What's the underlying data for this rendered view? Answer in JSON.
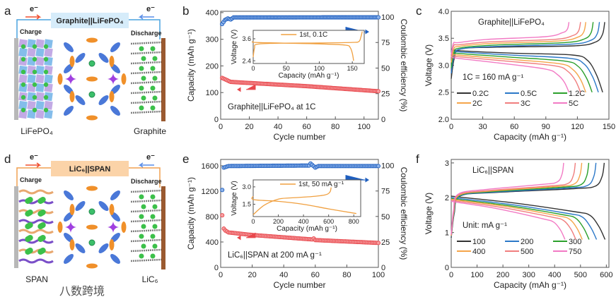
{
  "watermark": "八数跨境",
  "colors": {
    "capacity": "#e8474c",
    "ce": "#1f5fbf",
    "inset": "#f0a040",
    "axis": "#555555"
  },
  "schematics": [
    {
      "panel": "a",
      "title": "Graphite||LiFePO₄",
      "electron_left": "e⁻",
      "electron_right": "e⁻",
      "charge": "Charge",
      "discharge": "Discharge",
      "left_label": "LiFePO₄",
      "right_label": "Graphite",
      "title_color": "#d6ecfa",
      "wire_color": "#4aa3df",
      "left_type": "olivine"
    },
    {
      "panel": "d",
      "title": "LiC₆||SPAN",
      "electron_left": "e⁻",
      "electron_right": "e⁻",
      "charge": "Charge",
      "discharge": "Discharge",
      "left_label": "SPAN",
      "right_label": "LiC₆",
      "title_color": "#fbd3a8",
      "wire_color": "#f0a050",
      "left_type": "span"
    }
  ],
  "chart_data": [
    {
      "panel": "b",
      "type": "scatter",
      "xlabel": "Cycle number",
      "ylabel": "Capacity (mAh g⁻¹)",
      "y2label": "Coulombic efficiency (%)",
      "xlim": [
        0,
        110
      ],
      "ylim": [
        0,
        405
      ],
      "y2lim": [
        0,
        105.5
      ],
      "xticks": [
        0,
        20,
        40,
        60,
        80,
        100
      ],
      "yticks": [
        0,
        100,
        200,
        300,
        400
      ],
      "y2ticks": [
        0,
        25,
        50,
        75,
        100
      ],
      "annotation": "Graphite||LiFePO₄ at 1C",
      "n_cycles": 110,
      "series": [
        {
          "name": "Capacity",
          "axis": "left",
          "points": [
            [
              1,
              155
            ],
            [
              3,
              150
            ],
            [
              7,
              140
            ],
            [
              20,
              136
            ],
            [
              60,
              124
            ],
            [
              110,
              105
            ]
          ]
        },
        {
          "name": "Coulombic efficiency",
          "axis": "right",
          "points": [
            [
              1,
              93
            ],
            [
              2,
              95
            ],
            [
              3,
              97
            ],
            [
              5,
              98.5
            ],
            [
              7,
              97.5
            ],
            [
              9,
              99.5
            ],
            [
              110,
              99.6
            ]
          ]
        }
      ],
      "inset": {
        "xlabel": "Capacity (mAh g⁻¹)",
        "ylabel": "Voltage (V)",
        "xlim": [
          0,
          168
        ],
        "ylim": [
          2.25,
          4.06
        ],
        "xticks": [
          0,
          50,
          100,
          150
        ],
        "yticks": [
          2.4,
          3.6
        ],
        "ytick_labels": [
          "2.4",
          "3.6"
        ],
        "legend": "1st, 0.1C",
        "series": [
          {
            "name": "charge",
            "points": [
              [
                0,
                2.6
              ],
              [
                2,
                3.1
              ],
              [
                6,
                3.3
              ],
              [
                40,
                3.36
              ],
              [
                100,
                3.37
              ],
              [
                150,
                3.4
              ],
              [
                160,
                3.45
              ],
              [
                163,
                3.7
              ],
              [
                165,
                4.0
              ]
            ]
          },
          {
            "name": "discharge",
            "points": [
              [
                0,
                3.45
              ],
              [
                3,
                3.4
              ],
              [
                50,
                3.36
              ],
              [
                100,
                3.32
              ],
              [
                140,
                3.25
              ],
              [
                147,
                3.1
              ],
              [
                150,
                2.8
              ],
              [
                152,
                2.4
              ]
            ]
          }
        ]
      }
    },
    {
      "panel": "c",
      "type": "line",
      "xlabel": "Capacity (mAh g⁻¹)",
      "ylabel": "Voltage (V)",
      "xlim": [
        0,
        150
      ],
      "ylim": [
        2.0,
        4.0
      ],
      "xticks": [
        0,
        30,
        60,
        90,
        120,
        150
      ],
      "yticks": [
        2.0,
        2.5,
        3.0,
        3.5,
        4.0
      ],
      "ytick_labels": [
        "2.0",
        "2.5",
        "3.0",
        "3.5",
        "4.0"
      ],
      "annotation": "Graphite||LiFePO₄",
      "annotation2": "1C = 160 mA g⁻¹",
      "legend_location": "lower",
      "series": [
        {
          "name": "0.2C",
          "color": "#333333",
          "charge_end": 146,
          "discharge_end": 144,
          "charge_plateau": [
            3.3,
            3.38
          ],
          "discharge_plateau": [
            3.27,
            3.14
          ],
          "start_v": 2.75
        },
        {
          "name": "0.5C",
          "color": "#2b78c8",
          "charge_end": 141,
          "discharge_end": 140,
          "charge_plateau": [
            3.3,
            3.41
          ],
          "discharge_plateau": [
            3.25,
            3.08
          ],
          "start_v": 2.85
        },
        {
          "name": "1.2C",
          "color": "#2ca02c",
          "charge_end": 135,
          "discharge_end": 134,
          "charge_plateau": [
            3.32,
            3.44
          ],
          "discharge_plateau": [
            3.22,
            3.03
          ],
          "start_v": 2.95
        },
        {
          "name": "2C",
          "color": "#f5a54a",
          "charge_end": 128,
          "discharge_end": 128,
          "charge_plateau": [
            3.35,
            3.47
          ],
          "discharge_plateau": [
            3.19,
            2.98
          ],
          "start_v": 3.05
        },
        {
          "name": "3C",
          "color": "#f07e7e",
          "charge_end": 123,
          "discharge_end": 123,
          "charge_plateau": [
            3.38,
            3.5
          ],
          "discharge_plateau": [
            3.16,
            2.94
          ],
          "start_v": 3.15
        },
        {
          "name": "5C",
          "color": "#f27ac4",
          "charge_end": 112,
          "discharge_end": 112,
          "charge_plateau": [
            3.42,
            3.55
          ],
          "discharge_plateau": [
            3.13,
            2.88
          ],
          "start_v": 3.2
        }
      ]
    },
    {
      "panel": "e",
      "type": "scatter",
      "xlabel": "Cycle number",
      "ylabel": "Capacity (mAh g⁻¹)",
      "y2label": "Coulombic efficiency (%)",
      "xlim": [
        0,
        100
      ],
      "ylim": [
        0,
        1700
      ],
      "y2lim": [
        0,
        106
      ],
      "xticks": [
        0,
        20,
        40,
        60,
        80,
        100
      ],
      "yticks": [
        0,
        400,
        800,
        1200,
        1600
      ],
      "y2ticks": [
        0,
        25,
        50,
        75,
        100
      ],
      "annotation": "LiC₆||SPAN at 200 mA g⁻¹",
      "n_cycles": 100,
      "series": [
        {
          "name": "Capacity",
          "axis": "left",
          "points": [
            [
              1,
              820
            ],
            [
              2,
              610
            ],
            [
              3,
              580
            ],
            [
              5,
              550
            ],
            [
              20,
              510
            ],
            [
              58,
              440
            ],
            [
              59,
              455
            ],
            [
              60,
              430
            ],
            [
              100,
              385
            ]
          ]
        },
        {
          "name": "Coulombic efficiency",
          "axis": "right",
          "points": [
            [
              1,
              76
            ],
            [
              2,
              98
            ],
            [
              5,
              99.5
            ],
            [
              56,
              100
            ],
            [
              57,
              102
            ],
            [
              60,
              98
            ],
            [
              62,
              99.5
            ],
            [
              100,
              99.5
            ]
          ]
        }
      ],
      "inset": {
        "xlabel": "Capacity (mAh g⁻¹)",
        "ylabel": "Voltage (V)",
        "xlim": [
          0,
          855
        ],
        "ylim": [
          0.44,
          3.6
        ],
        "xticks": [
          0,
          200,
          400,
          600,
          800
        ],
        "yticks": [
          1.5,
          3.0
        ],
        "ytick_labels": [
          "1.5",
          "3.0"
        ],
        "legend": "1st, 50 mA g⁻¹",
        "series": [
          {
            "name": "charge",
            "points": [
              [
                0,
                0.6
              ],
              [
                50,
                1.1
              ],
              [
                100,
                1.5
              ],
              [
                200,
                1.95
              ],
              [
                300,
                2.05
              ],
              [
                450,
                2.15
              ],
              [
                570,
                2.3
              ],
              [
                610,
                2.55
              ],
              [
                620,
                2.95
              ]
            ]
          },
          {
            "name": "discharge",
            "points": [
              [
                0,
                2.2
              ],
              [
                5,
                1.9
              ],
              [
                200,
                1.75
              ],
              [
                400,
                1.5
              ],
              [
                600,
                1.1
              ],
              [
                820,
                0.7
              ]
            ]
          }
        ]
      }
    },
    {
      "panel": "f",
      "type": "line",
      "xlabel": "Capacity (mAh g⁻¹)",
      "ylabel": "Voltage (V)",
      "xlim": [
        0,
        610
      ],
      "ylim": [
        0,
        3.1
      ],
      "xticks": [
        0,
        100,
        200,
        300,
        400,
        500,
        600
      ],
      "yticks": [
        0,
        1,
        2,
        3
      ],
      "ytick_labels": [
        "0",
        "1",
        "2",
        "3"
      ],
      "annotation": "LiC₆||SPAN",
      "annotation2": "Unit:  mA g⁻¹",
      "legend_location": "lower",
      "series": [
        {
          "name": "100",
          "color": "#333333",
          "charge_end": 592,
          "discharge_end": 595,
          "charge_plateau": [
            2.05,
            2.28
          ],
          "discharge_plateau": [
            2.02,
            1.55
          ],
          "start_v": 0.85,
          "end_v": 0.8
        },
        {
          "name": "200",
          "color": "#2b78c8",
          "charge_end": 560,
          "discharge_end": 562,
          "charge_plateau": [
            2.05,
            2.3
          ],
          "discharge_plateau": [
            1.98,
            1.5
          ],
          "start_v": 0.88,
          "end_v": 0.8
        },
        {
          "name": "300",
          "color": "#2ca02c",
          "charge_end": 532,
          "discharge_end": 533,
          "charge_plateau": [
            2.06,
            2.32
          ],
          "discharge_plateau": [
            1.95,
            1.47
          ],
          "start_v": 0.9,
          "end_v": 0.8
        },
        {
          "name": "400",
          "color": "#f5a54a",
          "charge_end": 505,
          "discharge_end": 507,
          "charge_plateau": [
            2.07,
            2.34
          ],
          "discharge_plateau": [
            1.93,
            1.44
          ],
          "start_v": 0.9,
          "end_v": 0.8
        },
        {
          "name": "500",
          "color": "#f07e7e",
          "charge_end": 480,
          "discharge_end": 482,
          "charge_plateau": [
            2.08,
            2.36
          ],
          "discharge_plateau": [
            1.9,
            1.4
          ],
          "start_v": 0.92,
          "end_v": 0.8
        },
        {
          "name": "750",
          "color": "#f27ac4",
          "charge_end": 435,
          "discharge_end": 440,
          "charge_plateau": [
            2.1,
            2.4
          ],
          "discharge_plateau": [
            1.87,
            1.35
          ],
          "start_v": 0.95,
          "end_v": 0.8
        }
      ]
    }
  ]
}
